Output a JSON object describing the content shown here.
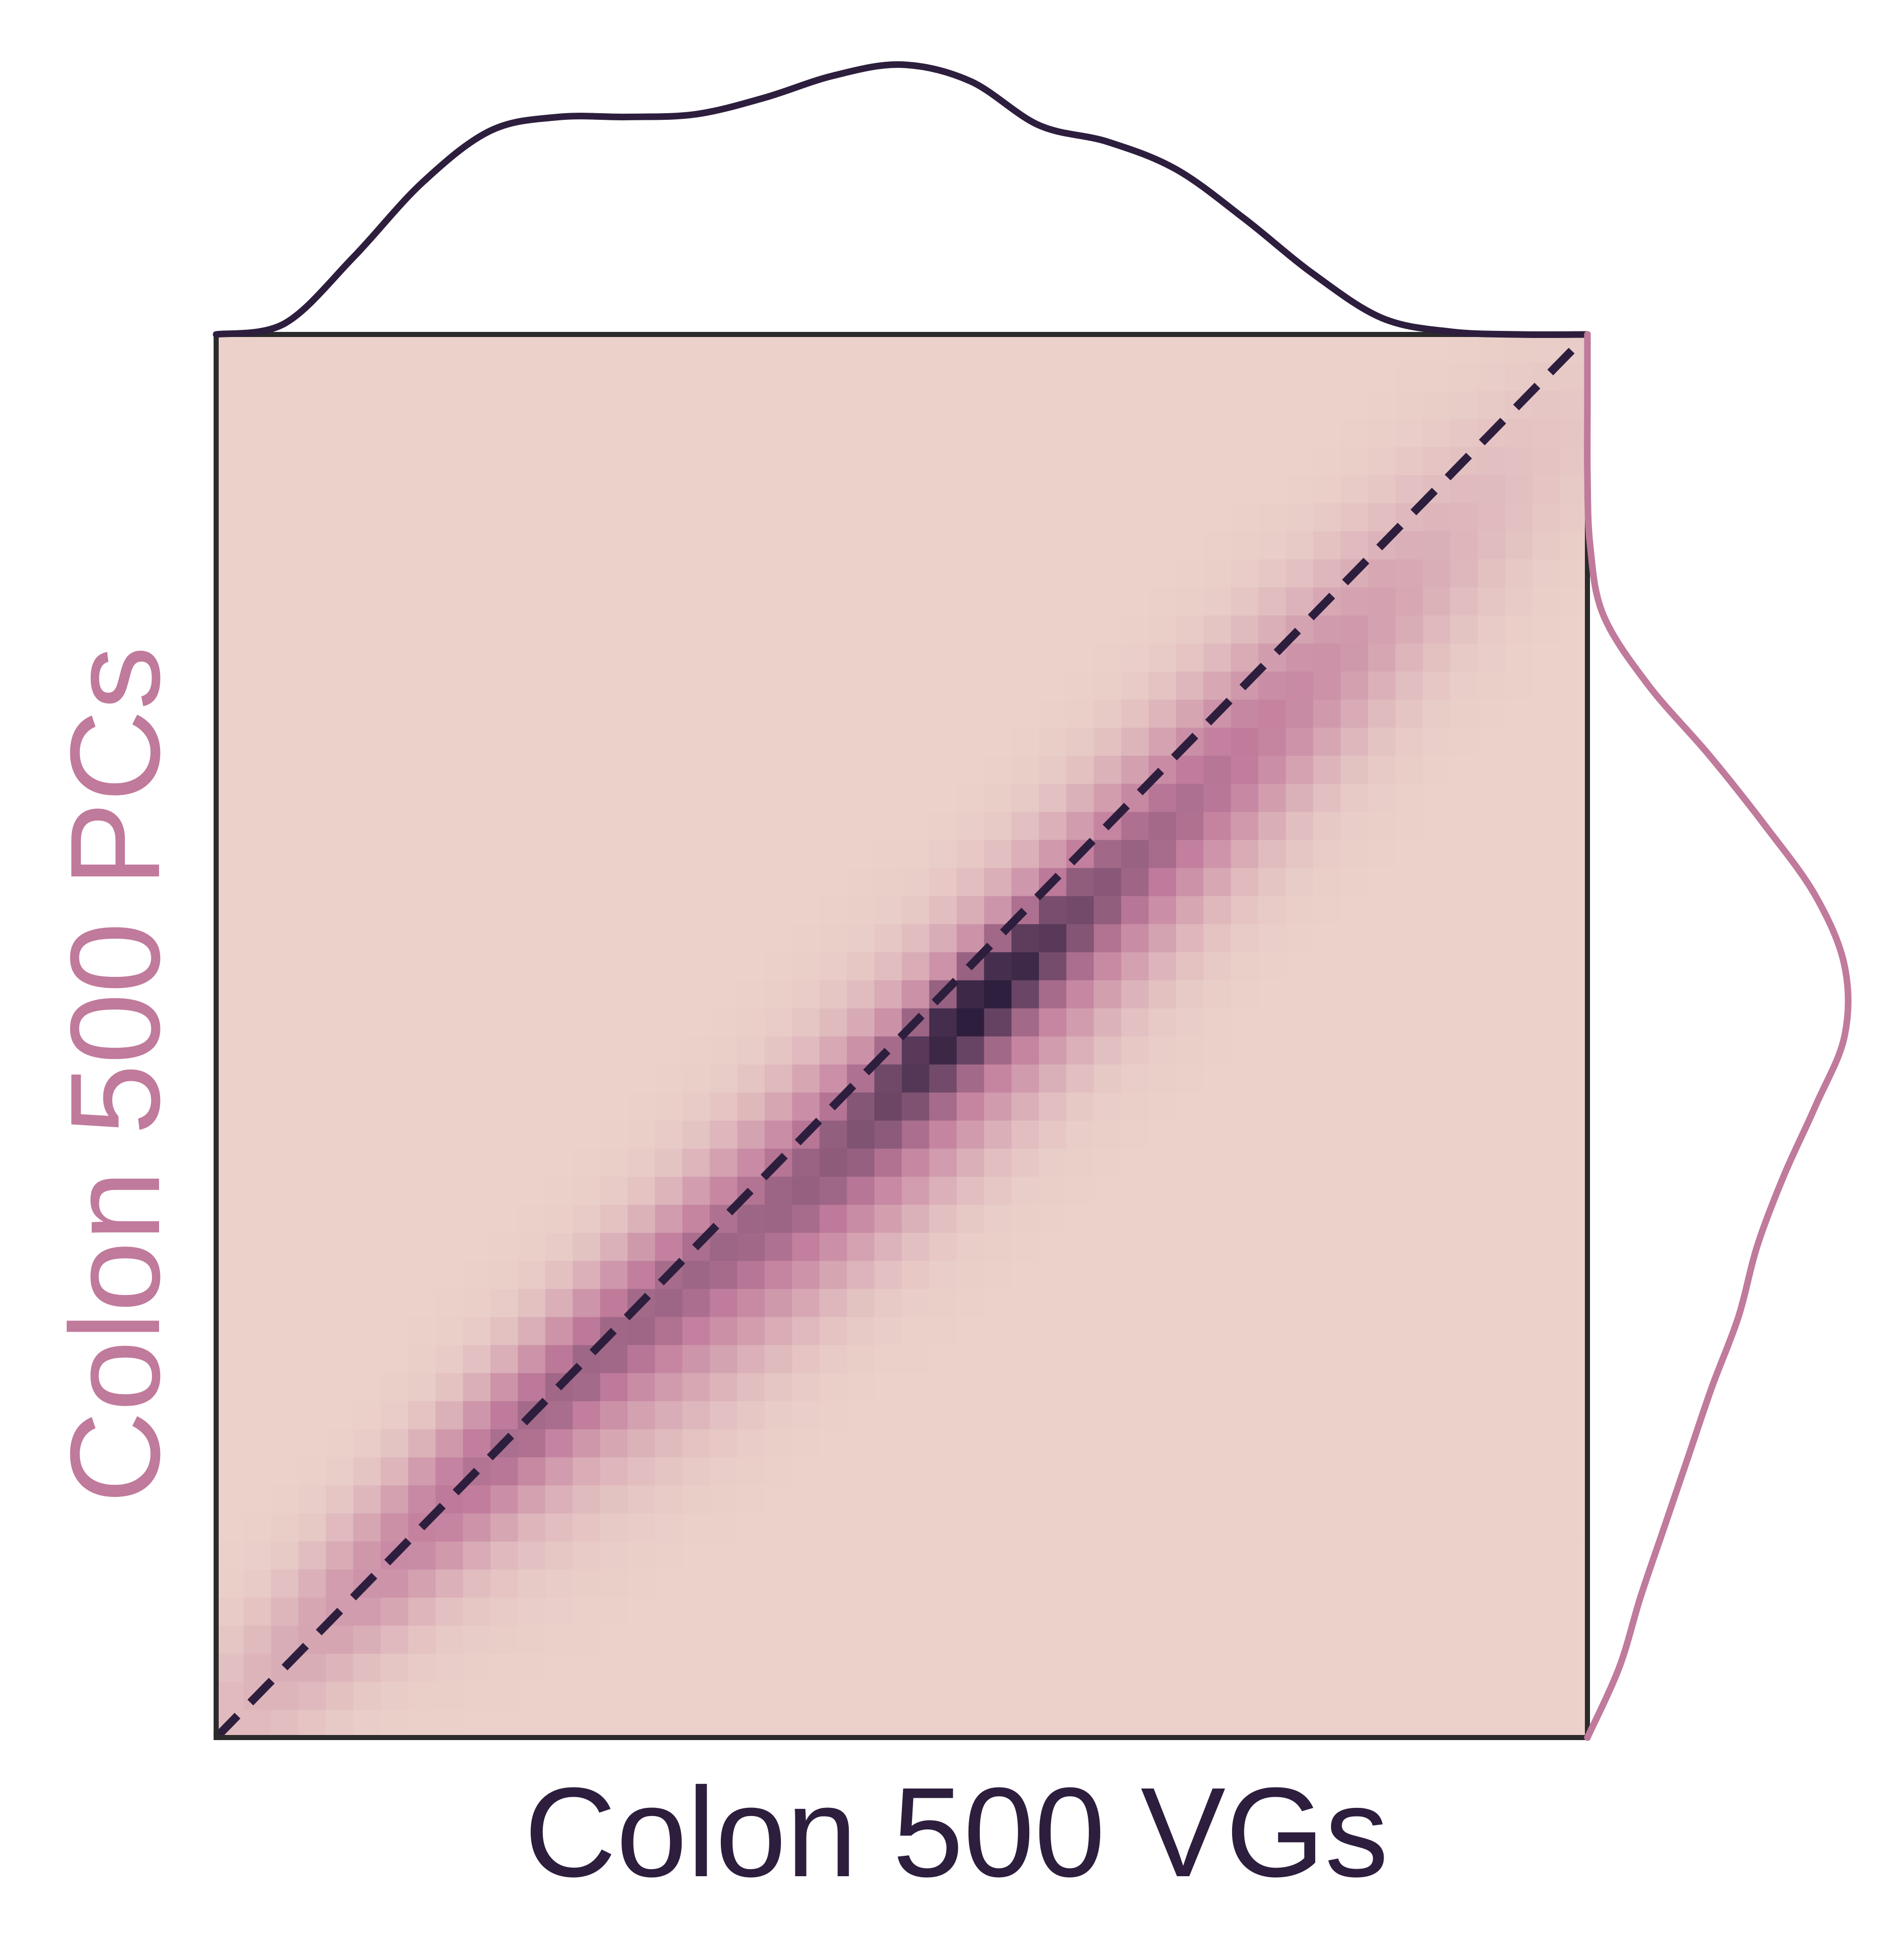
{
  "chart_data": {
    "type": "heatmap",
    "title": "",
    "xlabel": "Colon 500 VGs",
    "ylabel": "Colon 500 PCs",
    "xlim": [
      0,
      1
    ],
    "ylim": [
      0,
      1
    ],
    "bins": 50,
    "grid": false,
    "colors": {
      "x_label": "#2d1e3e",
      "y_label": "#c07a9b",
      "x_marginal": "#2d1e3e",
      "y_marginal": "#c07a9b",
      "heat_low": "#ebd1ca",
      "heat_mid": "#c17c9c",
      "heat_high": "#2d1e3e",
      "frame": "#2b2b2b",
      "diagonal": "#2d1e3e"
    },
    "diagonal": {
      "style": "dashed",
      "from": [
        0,
        0
      ],
      "to": [
        1,
        1
      ]
    },
    "density_components": [
      {
        "mx": 0.22,
        "my": 0.22,
        "sx": 0.12,
        "sy": 0.12,
        "rho": 0.95,
        "w": 0.8
      },
      {
        "mx": 0.48,
        "my": 0.43,
        "sx": 0.15,
        "sy": 0.145,
        "rho": 0.93,
        "w": 0.95
      },
      {
        "mx": 0.555,
        "my": 0.525,
        "sx": 0.05,
        "sy": 0.05,
        "rho": 0.9,
        "w": 0.8
      },
      {
        "mx": 0.71,
        "my": 0.67,
        "sx": 0.13,
        "sy": 0.13,
        "rho": 0.93,
        "w": 0.7
      }
    ],
    "x_marginal": {
      "x": [
        0.0,
        0.05,
        0.1,
        0.15,
        0.2,
        0.25,
        0.3,
        0.35,
        0.4,
        0.45,
        0.5,
        0.55,
        0.6,
        0.65,
        0.7,
        0.75,
        0.8,
        0.85,
        0.9,
        0.95,
        1.0
      ],
      "density": [
        0.0,
        0.04,
        0.28,
        0.55,
        0.74,
        0.79,
        0.79,
        0.8,
        0.86,
        0.94,
        0.98,
        0.92,
        0.76,
        0.7,
        0.6,
        0.42,
        0.22,
        0.06,
        0.01,
        0.0,
        0.0
      ]
    },
    "y_marginal": {
      "y": [
        0.0,
        0.05,
        0.1,
        0.15,
        0.2,
        0.25,
        0.3,
        0.35,
        0.4,
        0.45,
        0.5,
        0.55,
        0.6,
        0.65,
        0.7,
        0.75,
        0.8,
        0.85,
        0.9,
        0.95,
        1.0
      ],
      "density": [
        0.0,
        0.12,
        0.2,
        0.29,
        0.38,
        0.47,
        0.57,
        0.64,
        0.74,
        0.86,
        0.97,
        0.97,
        0.86,
        0.67,
        0.46,
        0.23,
        0.06,
        0.01,
        0.0,
        0.0,
        0.0
      ]
    }
  }
}
